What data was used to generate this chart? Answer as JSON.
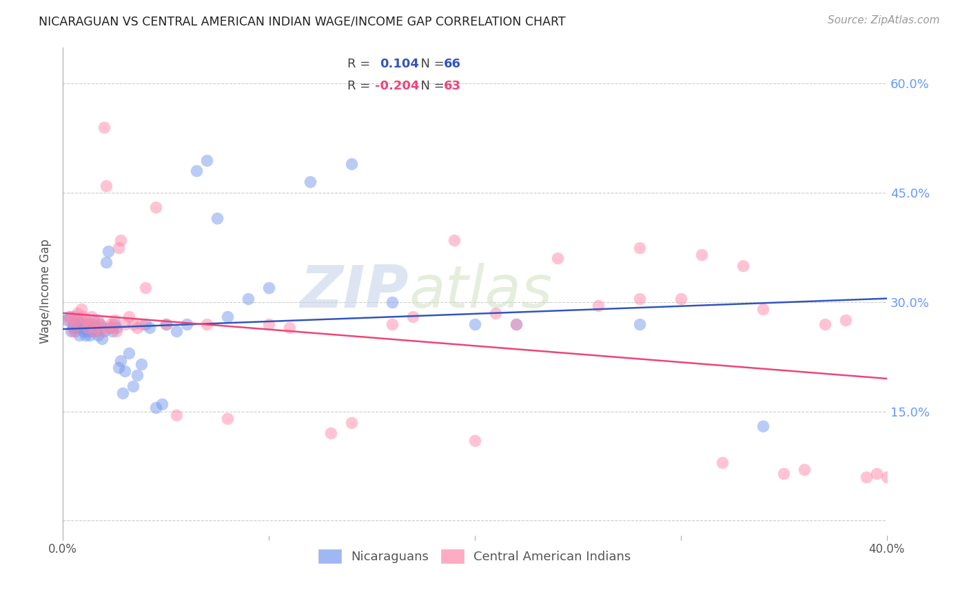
{
  "title": "NICARAGUAN VS CENTRAL AMERICAN INDIAN WAGE/INCOME GAP CORRELATION CHART",
  "source": "Source: ZipAtlas.com",
  "ylabel": "Wage/Income Gap",
  "xrange": [
    0.0,
    0.4
  ],
  "yrange": [
    -0.02,
    0.65
  ],
  "blue_color": "#7799ee",
  "pink_color": "#ff88aa",
  "line_blue": "#3355bb",
  "line_pink": "#ee4477",
  "watermark_zip": "ZIP",
  "watermark_atlas": "atlas",
  "nicaraguan_R": 0.104,
  "nicaraguan_N": 66,
  "cai_R": -0.204,
  "cai_N": 63,
  "blue_scatter_x": [
    0.002,
    0.003,
    0.004,
    0.005,
    0.005,
    0.006,
    0.006,
    0.007,
    0.007,
    0.008,
    0.008,
    0.009,
    0.009,
    0.01,
    0.01,
    0.011,
    0.011,
    0.012,
    0.012,
    0.013,
    0.013,
    0.014,
    0.014,
    0.015,
    0.015,
    0.016,
    0.016,
    0.017,
    0.018,
    0.019,
    0.019,
    0.02,
    0.021,
    0.022,
    0.023,
    0.024,
    0.025,
    0.026,
    0.027,
    0.028,
    0.029,
    0.03,
    0.032,
    0.034,
    0.036,
    0.038,
    0.04,
    0.042,
    0.045,
    0.048,
    0.05,
    0.055,
    0.06,
    0.065,
    0.07,
    0.075,
    0.08,
    0.09,
    0.1,
    0.12,
    0.14,
    0.16,
    0.2,
    0.22,
    0.28,
    0.34
  ],
  "blue_scatter_y": [
    0.275,
    0.28,
    0.26,
    0.27,
    0.265,
    0.28,
    0.26,
    0.275,
    0.265,
    0.27,
    0.255,
    0.265,
    0.275,
    0.26,
    0.27,
    0.265,
    0.255,
    0.27,
    0.26,
    0.265,
    0.255,
    0.27,
    0.26,
    0.265,
    0.275,
    0.26,
    0.265,
    0.255,
    0.27,
    0.265,
    0.25,
    0.26,
    0.355,
    0.37,
    0.265,
    0.26,
    0.27,
    0.265,
    0.21,
    0.22,
    0.175,
    0.205,
    0.23,
    0.185,
    0.2,
    0.215,
    0.27,
    0.265,
    0.155,
    0.16,
    0.27,
    0.26,
    0.27,
    0.48,
    0.495,
    0.415,
    0.28,
    0.305,
    0.32,
    0.465,
    0.49,
    0.3,
    0.27,
    0.27,
    0.27,
    0.13
  ],
  "pink_scatter_x": [
    0.003,
    0.004,
    0.005,
    0.006,
    0.007,
    0.008,
    0.009,
    0.01,
    0.011,
    0.012,
    0.013,
    0.014,
    0.015,
    0.016,
    0.017,
    0.018,
    0.019,
    0.02,
    0.021,
    0.022,
    0.023,
    0.024,
    0.025,
    0.026,
    0.027,
    0.028,
    0.03,
    0.032,
    0.034,
    0.036,
    0.038,
    0.04,
    0.045,
    0.05,
    0.055,
    0.07,
    0.08,
    0.1,
    0.11,
    0.13,
    0.14,
    0.16,
    0.17,
    0.19,
    0.2,
    0.21,
    0.22,
    0.24,
    0.26,
    0.28,
    0.3,
    0.31,
    0.32,
    0.33,
    0.34,
    0.35,
    0.36,
    0.37,
    0.38,
    0.39,
    0.395,
    0.4,
    0.28
  ],
  "pink_scatter_y": [
    0.275,
    0.28,
    0.26,
    0.275,
    0.285,
    0.27,
    0.29,
    0.28,
    0.275,
    0.265,
    0.27,
    0.28,
    0.26,
    0.265,
    0.275,
    0.27,
    0.26,
    0.54,
    0.46,
    0.265,
    0.27,
    0.265,
    0.275,
    0.26,
    0.375,
    0.385,
    0.27,
    0.28,
    0.27,
    0.265,
    0.27,
    0.32,
    0.43,
    0.27,
    0.145,
    0.27,
    0.14,
    0.27,
    0.265,
    0.12,
    0.135,
    0.27,
    0.28,
    0.385,
    0.11,
    0.285,
    0.27,
    0.36,
    0.295,
    0.305,
    0.305,
    0.365,
    0.08,
    0.35,
    0.29,
    0.065,
    0.07,
    0.27,
    0.275,
    0.06,
    0.065,
    0.06,
    0.375
  ]
}
